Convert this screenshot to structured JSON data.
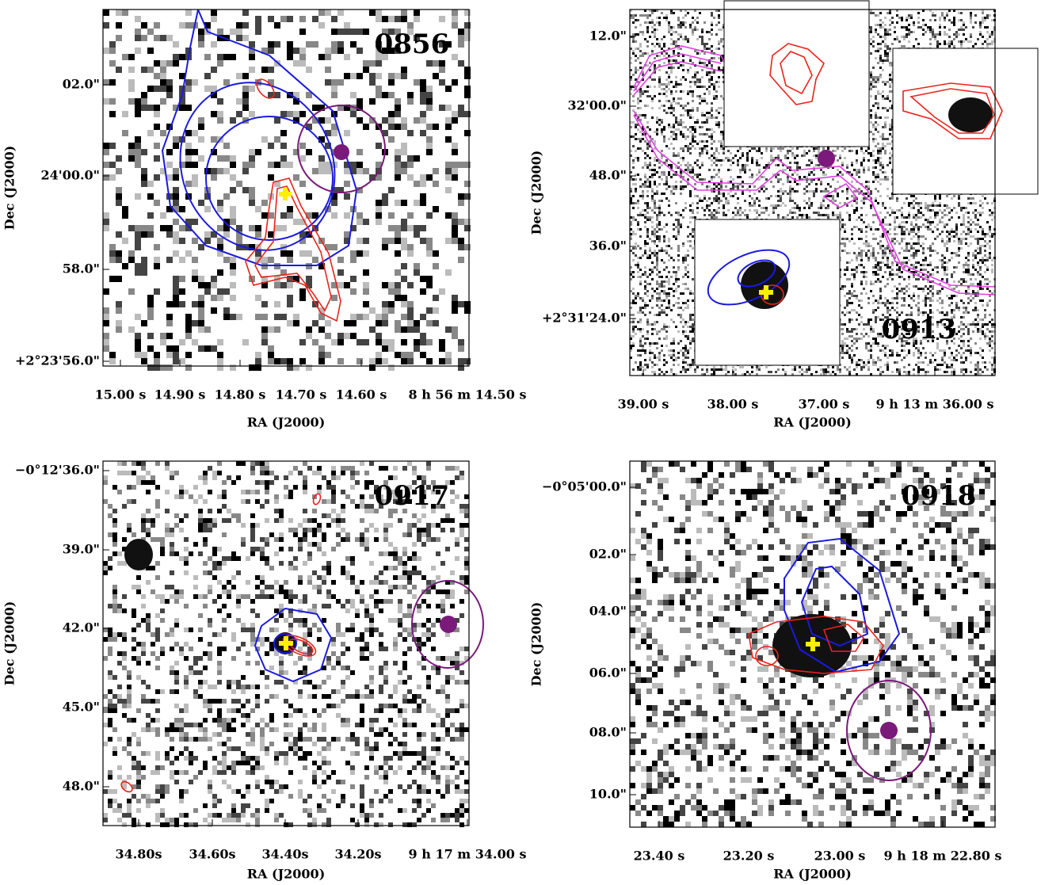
{
  "panels": [
    {
      "label": "0856",
      "x_axis_title": "RA (J2000)",
      "y_axis_title": "Dec (J2000)",
      "x_ticks": [
        "15.00 s",
        "14.90 s",
        "14.80 s",
        "14.70 s",
        "14.60 s",
        "8 h 56 m 14.50 s"
      ],
      "y_ticks": [
        "02.0\"",
        "24'00.0\"",
        "58.0\"",
        "+2°23'56.0\""
      ]
    },
    {
      "label": "0913",
      "x_axis_title": "RA (J2000)",
      "y_axis_title": "Dec (J2000)",
      "x_ticks": [
        "39.00 s",
        "38.00 s",
        "37.00 s",
        "9 h 13 m 36.00 s"
      ],
      "y_ticks": [
        "12.0\"",
        "32'00.0\"",
        "48.0\"",
        "36.0\"",
        "+2°31'24.0\""
      ]
    },
    {
      "label": "0917",
      "x_axis_title": "RA (J2000)",
      "y_axis_title": "Dec (J2000)",
      "x_ticks": [
        "34.80s",
        "34.60s",
        "34.40s",
        "34.20s",
        "9 h 17 m 34.00 s"
      ],
      "y_ticks": [
        "−0°12'36.0\"",
        "39.0\"",
        "42.0\"",
        "45.0\"",
        "48.0\""
      ]
    },
    {
      "label": "0918",
      "x_axis_title": "RA (J2000)",
      "y_axis_title": "Dec (J2000)",
      "x_ticks": [
        "23.40 s",
        "23.20 s",
        "23.00 s",
        "9 h 18 m 22.80 s"
      ],
      "y_ticks": [
        "−0°05'00.0\"",
        "02.0\"",
        "04.0\"",
        "06.0\"",
        "08.0\"",
        "10.0\""
      ]
    }
  ]
}
